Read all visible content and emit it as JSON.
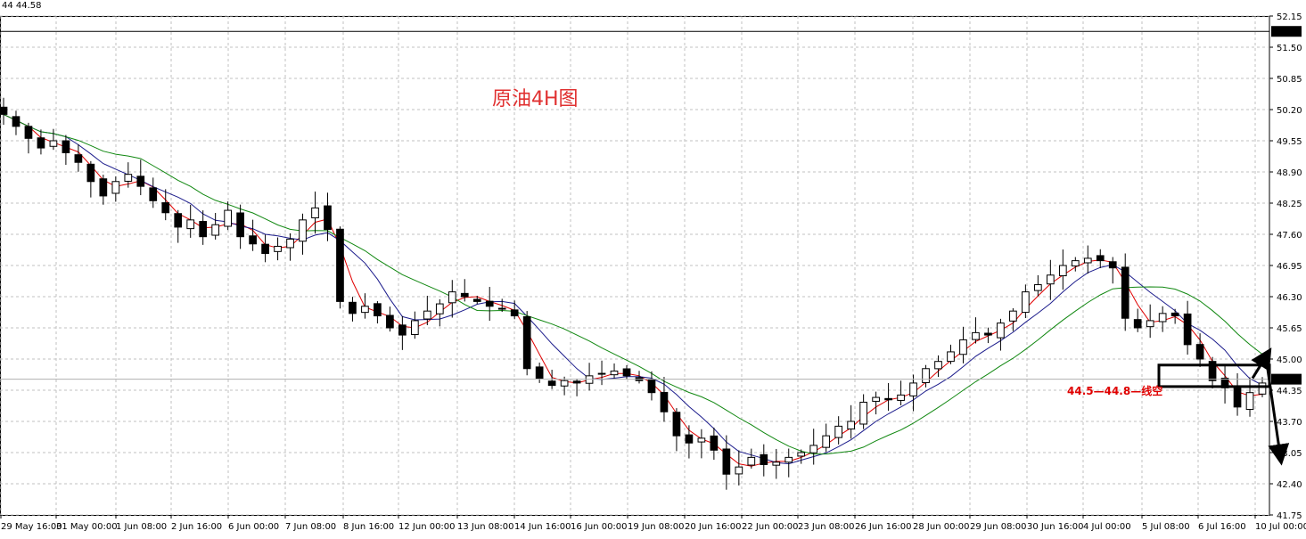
{
  "header": {
    "text": "44 44.58"
  },
  "chart_data": {
    "type": "candlestick",
    "title": "原油4H图",
    "annotation": "44.5—44.8—线空",
    "price_ticks": [
      "52.15",
      "51.50",
      "50.85",
      "50.20",
      "49.55",
      "48.90",
      "48.25",
      "47.60",
      "46.95",
      "46.30",
      "45.65",
      "45.00",
      "44.35",
      "43.70",
      "43.05",
      "42.40",
      "41.75"
    ],
    "x_labels": [
      "29 May 16:00",
      "31 May 00:00",
      "1 Jun 08:00",
      "2 Jun 16:00",
      "6 Jun 00:00",
      "7 Jun 08:00",
      "8 Jun 16:00",
      "12 Jun 00:00",
      "13 Jun 08:00",
      "14 Jun 16:00",
      "16 Jun 00:00",
      "19 Jun 08:00",
      "20 Jun 16:00",
      "22 Jun 00:00",
      "23 Jun 08:00",
      "26 Jun 16:00",
      "28 Jun 00:00",
      "29 Jun 08:00",
      "30 Jun 16:00",
      "4 Jul 00:00",
      "5 Jul 08:00",
      "6 Jul 16:00",
      "10 Jul 00:00"
    ],
    "ylim": [
      41.75,
      52.15
    ],
    "horizontal_line": {
      "price": 51.83,
      "label": "51.83"
    },
    "current_price": {
      "price": 44.58,
      "label": "44.58"
    },
    "rect_zone": {
      "from": 44.5,
      "to": 44.8
    },
    "colors": {
      "ma_fast": "#e00000",
      "ma_mid": "#1c1c8c",
      "ma_slow": "#118811",
      "title": "#e03030",
      "annotation": "#e00000",
      "candle": "#000000"
    },
    "key_closes": [
      50.1,
      49.85,
      49.6,
      49.4,
      49.55,
      49.3,
      49.1,
      48.7,
      48.4,
      48.7,
      48.85,
      48.6,
      48.3,
      48.05,
      47.75,
      47.9,
      47.55,
      47.8,
      48.1,
      47.55,
      47.4,
      47.2,
      47.35,
      47.5,
      47.9,
      48.15,
      47.7,
      46.2,
      45.95,
      46.1,
      45.9,
      45.65,
      45.5,
      45.8,
      46.0,
      46.15,
      46.4,
      46.3,
      46.2,
      46.1,
      46.05,
      45.9,
      44.8,
      44.6,
      44.45,
      44.55,
      44.5,
      44.65,
      44.7,
      44.75,
      44.65,
      44.55,
      44.3,
      43.9,
      43.4,
      43.25,
      43.35,
      43.1,
      42.6,
      42.75,
      42.95,
      42.8,
      42.85,
      42.95,
      43.05,
      43.2,
      43.4,
      43.6,
      43.7,
      44.1,
      44.2,
      44.15,
      44.25,
      44.5,
      44.8,
      44.95,
      45.15,
      45.4,
      45.55,
      45.5,
      45.75,
      46.0,
      46.4,
      46.55,
      46.75,
      46.95,
      47.05,
      47.1,
      47.05,
      46.9,
      45.85,
      45.65,
      45.8,
      45.95,
      45.9,
      45.3,
      45.0,
      44.55,
      44.4,
      44.0,
      44.3,
      44.5
    ]
  }
}
